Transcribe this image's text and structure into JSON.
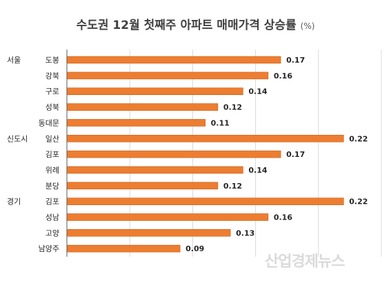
{
  "title": {
    "main": "수도권 12월 첫째주 아파트 매매가격 상승률",
    "unit": "(%)"
  },
  "watermark": "산업경제뉴스",
  "colors": {
    "bar": "#ED7D31",
    "bar_stroke": "#C55A11",
    "text": "#262626",
    "grid": "#D9D9D9"
  },
  "chart_data": {
    "type": "bar",
    "orientation": "horizontal",
    "title": "수도권 12월 첫째주 아파트 매매가격 상승률 (%)",
    "xlim": [
      0,
      0.25
    ],
    "grid": true,
    "groups": [
      {
        "label": "서울",
        "categories": [
          "도봉",
          "강북",
          "구로",
          "성북",
          "동대문"
        ]
      },
      {
        "label": "신도시",
        "categories": [
          "일산",
          "김포",
          "위례",
          "분당"
        ]
      },
      {
        "label": "경기",
        "categories": [
          "김포",
          "성남",
          "고양",
          "남양주"
        ]
      }
    ],
    "categories": [
      "도봉",
      "강북",
      "구로",
      "성북",
      "동대문",
      "일산",
      "김포",
      "위례",
      "분당",
      "김포",
      "성남",
      "고양",
      "남양주"
    ],
    "value_labels": [
      "0.17",
      "0.16",
      "0.14",
      "0.12",
      "0.11",
      "0.22",
      "0.17",
      "0.14",
      "0.12",
      "0.22",
      "0.16",
      "0.13",
      "0.09"
    ],
    "values": [
      0.17,
      0.16,
      0.14,
      0.12,
      0.11,
      0.22,
      0.17,
      0.14,
      0.12,
      0.22,
      0.16,
      0.13,
      0.09
    ]
  }
}
